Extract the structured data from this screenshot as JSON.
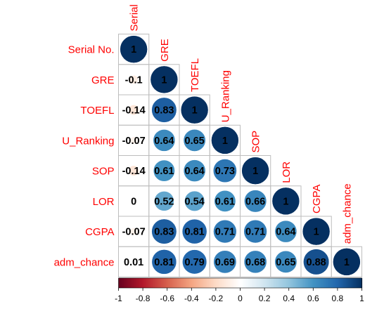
{
  "chart_data": {
    "type": "heatmap",
    "style": "lower-triangle correlation matrix with circles",
    "variables": [
      "Serial No.",
      "GRE",
      "TOEFL",
      "U_Ranking",
      "SOP",
      "LOR",
      "CGPA",
      "adm_chance"
    ],
    "column_labels": [
      "Serial",
      "GRE",
      "TOEFL",
      "U_Ranking",
      "SOP",
      "LOR",
      "CGPA",
      "adm_chance"
    ],
    "matrix": [
      [
        1
      ],
      [
        -0.1,
        1
      ],
      [
        -0.14,
        0.83,
        1
      ],
      [
        -0.07,
        0.64,
        0.65,
        1
      ],
      [
        -0.14,
        0.61,
        0.64,
        0.73,
        1
      ],
      [
        0,
        0.52,
        0.54,
        0.61,
        0.66,
        1
      ],
      [
        -0.07,
        0.83,
        0.81,
        0.71,
        0.71,
        0.64,
        1
      ],
      [
        0.01,
        0.81,
        0.79,
        0.69,
        0.68,
        0.65,
        0.88,
        1
      ]
    ],
    "value_labels": [
      [
        "1"
      ],
      [
        "-0.1",
        "1"
      ],
      [
        "-0.14",
        "0.83",
        "1"
      ],
      [
        "-0.07",
        "0.64",
        "0.65",
        "1"
      ],
      [
        "-0.14",
        "0.61",
        "0.64",
        "0.73",
        "1"
      ],
      [
        "0",
        "0.52",
        "0.54",
        "0.61",
        "0.66",
        "1"
      ],
      [
        "-0.07",
        "0.83",
        "0.81",
        "0.71",
        "0.71",
        "0.64",
        "1"
      ],
      [
        "0.01",
        "0.81",
        "0.79",
        "0.69",
        "0.68",
        "0.65",
        "0.88",
        "1"
      ]
    ],
    "colorbar": {
      "range": [
        -1,
        1
      ],
      "ticks": [
        "-1",
        "-0.8",
        "-0.6",
        "-0.4",
        "-0.2",
        "0",
        "0.2",
        "0.4",
        "0.6",
        "0.8",
        "1"
      ]
    },
    "colors": {
      "negative_end": "#67001F",
      "zero": "#FFFFFF",
      "positive_end": "#053061",
      "label_color": "#FF0000",
      "grid": "#bdbdbd"
    }
  }
}
